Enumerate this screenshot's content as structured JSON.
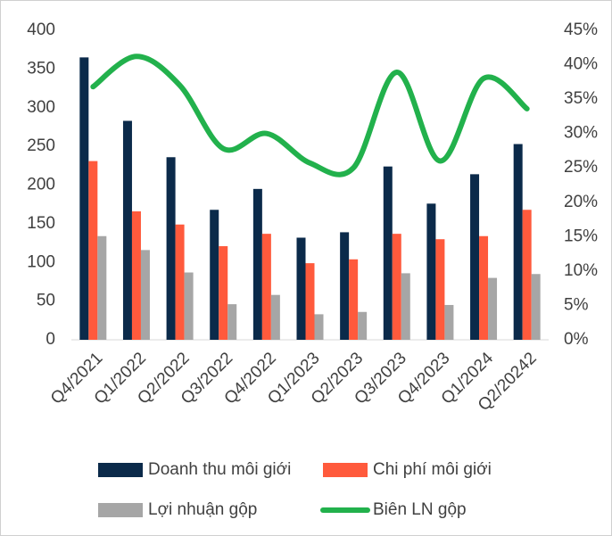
{
  "chart_data": {
    "type": "bar_line",
    "categories": [
      "Q4/2021",
      "Q1/2022",
      "Q2/2022",
      "Q3/2022",
      "Q4/2022",
      "Q1/2023",
      "Q2/2023",
      "Q3/2023",
      "Q4/2023",
      "Q1/2024",
      "Q2/20242"
    ],
    "series": [
      {
        "name": "Doanh thu môi giới",
        "color": "#0b2a4a",
        "type": "bar",
        "values": [
          365,
          283,
          236,
          168,
          195,
          132,
          139,
          224,
          176,
          214,
          253
        ]
      },
      {
        "name": "Chi phí môi giới",
        "color": "#ff5a3c",
        "type": "bar",
        "values": [
          231,
          166,
          149,
          121,
          137,
          99,
          104,
          137,
          130,
          134,
          168
        ]
      },
      {
        "name": "Lợi nhuận gộp",
        "color": "#a6a6a6",
        "type": "bar",
        "values": [
          134,
          116,
          87,
          46,
          58,
          33,
          36,
          86,
          45,
          80,
          85
        ]
      },
      {
        "name": "Biên LN gộp",
        "color": "#22b14c",
        "type": "line",
        "axis": "y2",
        "values": [
          36.8,
          41.2,
          37,
          27.8,
          30,
          25.7,
          25,
          38.9,
          26,
          38,
          33.6
        ]
      }
    ],
    "ylim": [
      0,
      400
    ],
    "yticks": [
      0,
      50,
      100,
      150,
      200,
      250,
      300,
      350,
      400
    ],
    "y2lim": [
      0,
      45
    ],
    "y2ticks": [
      {
        "value": 0,
        "label": "0%"
      },
      {
        "value": 5,
        "label": "5%"
      },
      {
        "value": 10,
        "label": "10%"
      },
      {
        "value": 15,
        "label": "15%"
      },
      {
        "value": 20,
        "label": "20%"
      },
      {
        "value": 25,
        "label": "25%"
      },
      {
        "value": 30,
        "label": "30%"
      },
      {
        "value": 35,
        "label": "35%"
      },
      {
        "value": 40,
        "label": "40%"
      },
      {
        "value": 45,
        "label": "45%"
      }
    ]
  }
}
